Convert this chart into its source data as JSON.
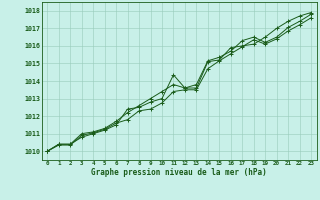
{
  "xlabel": "Graphe pression niveau de la mer (hPa)",
  "bg_color": "#c8f0e8",
  "plot_bg_color": "#c8f0e8",
  "grid_color": "#99ccbb",
  "line_color": "#1a5c1a",
  "x_ticks": [
    0,
    1,
    2,
    3,
    4,
    5,
    6,
    7,
    8,
    9,
    10,
    11,
    12,
    13,
    14,
    15,
    16,
    17,
    18,
    19,
    20,
    21,
    22,
    23
  ],
  "y_ticks": [
    1010,
    1011,
    1012,
    1013,
    1014,
    1015,
    1016,
    1017,
    1018
  ],
  "ylim": [
    1009.5,
    1018.5
  ],
  "xlim": [
    -0.5,
    23.5
  ],
  "series1": [
    1010.0,
    1010.4,
    1010.4,
    1010.8,
    1011.0,
    1011.2,
    1011.5,
    1012.4,
    1012.5,
    1012.8,
    1013.0,
    1014.35,
    1013.6,
    1013.6,
    1015.1,
    1015.2,
    1015.9,
    1016.0,
    1016.1,
    1016.5,
    1017.0,
    1017.4,
    1017.7,
    1017.9
  ],
  "series2": [
    1010.0,
    1010.4,
    1010.4,
    1011.0,
    1011.1,
    1011.3,
    1011.7,
    1012.2,
    1012.6,
    1013.0,
    1013.4,
    1013.8,
    1013.6,
    1013.8,
    1015.15,
    1015.35,
    1015.7,
    1016.3,
    1016.5,
    1016.2,
    1016.5,
    1017.05,
    1017.4,
    1017.8
  ],
  "series3": [
    1010.0,
    1010.35,
    1010.35,
    1010.9,
    1011.05,
    1011.25,
    1011.6,
    1011.8,
    1012.3,
    1012.4,
    1012.75,
    1013.4,
    1013.5,
    1013.5,
    1014.7,
    1015.15,
    1015.55,
    1015.95,
    1016.35,
    1016.1,
    1016.4,
    1016.85,
    1017.2,
    1017.6
  ]
}
